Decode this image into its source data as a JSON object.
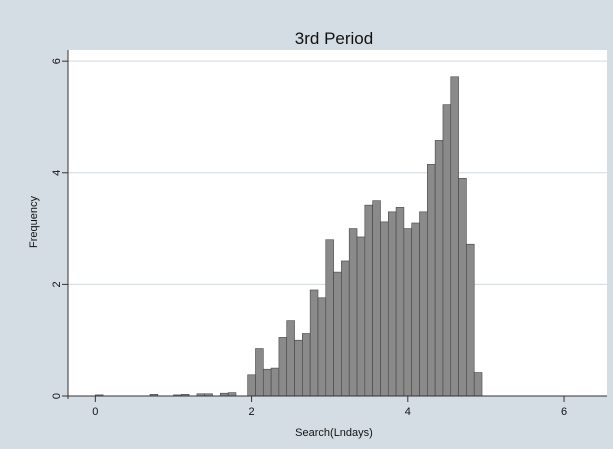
{
  "chart_data": {
    "type": "bar",
    "title": "3rd Period",
    "xlabel": "Search(Lndays)",
    "ylabel": "Frequency",
    "xlim": [
      -0.35,
      6.55
    ],
    "ylim": [
      0,
      6.2
    ],
    "x_ticks": [
      0,
      2,
      4,
      6
    ],
    "y_ticks": [
      0,
      2,
      4,
      6
    ],
    "bin_width": 0.1,
    "bins": [
      {
        "x": 0.0,
        "value": 0.02
      },
      {
        "x": 0.7,
        "value": 0.03
      },
      {
        "x": 1.0,
        "value": 0.02
      },
      {
        "x": 1.1,
        "value": 0.03
      },
      {
        "x": 1.3,
        "value": 0.04
      },
      {
        "x": 1.4,
        "value": 0.04
      },
      {
        "x": 1.6,
        "value": 0.05
      },
      {
        "x": 1.7,
        "value": 0.06
      },
      {
        "x": 1.95,
        "value": 0.38
      },
      {
        "x": 2.05,
        "value": 0.85
      },
      {
        "x": 2.15,
        "value": 0.48
      },
      {
        "x": 2.25,
        "value": 0.5
      },
      {
        "x": 2.35,
        "value": 1.05
      },
      {
        "x": 2.45,
        "value": 1.35
      },
      {
        "x": 2.55,
        "value": 1.0
      },
      {
        "x": 2.65,
        "value": 1.12
      },
      {
        "x": 2.75,
        "value": 1.9
      },
      {
        "x": 2.85,
        "value": 1.76
      },
      {
        "x": 2.95,
        "value": 2.8
      },
      {
        "x": 3.05,
        "value": 2.22
      },
      {
        "x": 3.15,
        "value": 2.42
      },
      {
        "x": 3.25,
        "value": 3.0
      },
      {
        "x": 3.35,
        "value": 2.85
      },
      {
        "x": 3.45,
        "value": 3.42
      },
      {
        "x": 3.55,
        "value": 3.5
      },
      {
        "x": 3.65,
        "value": 3.12
      },
      {
        "x": 3.75,
        "value": 3.3
      },
      {
        "x": 3.85,
        "value": 3.38
      },
      {
        "x": 3.95,
        "value": 3.0
      },
      {
        "x": 4.05,
        "value": 3.1
      },
      {
        "x": 4.15,
        "value": 3.3
      },
      {
        "x": 4.25,
        "value": 4.15
      },
      {
        "x": 4.35,
        "value": 4.58
      },
      {
        "x": 4.45,
        "value": 5.22
      },
      {
        "x": 4.55,
        "value": 5.72
      },
      {
        "x": 4.65,
        "value": 3.9
      },
      {
        "x": 4.75,
        "value": 2.72
      },
      {
        "x": 4.85,
        "value": 0.42
      }
    ],
    "grid": true,
    "legend": "none"
  },
  "colors": {
    "background": "#d5dde4",
    "plot_area": "#ffffff",
    "bar_fill": "#8a8a8a",
    "bar_stroke": "#444444",
    "gridline": "#d0dae2"
  }
}
